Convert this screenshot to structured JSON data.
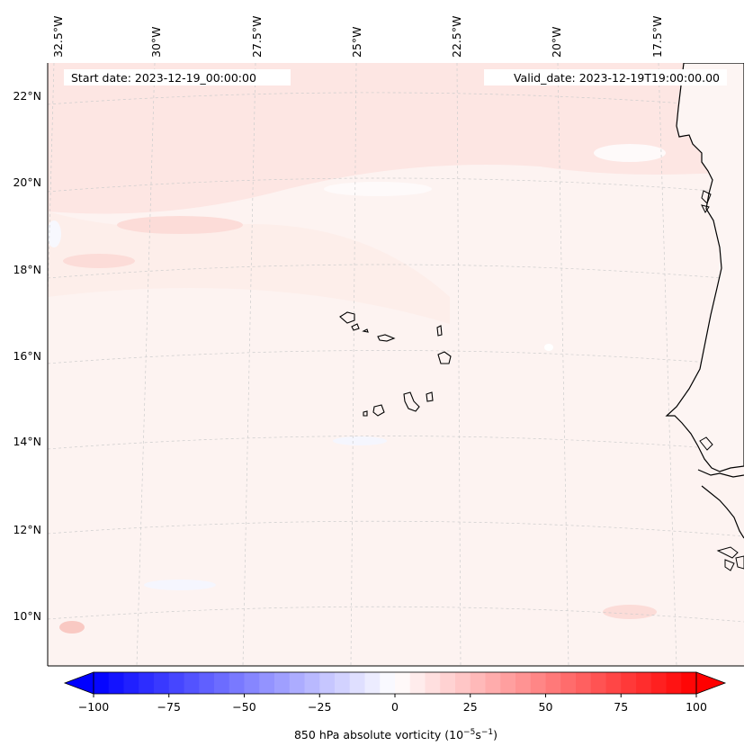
{
  "header": {
    "start_date": "Start date: 2023-12-19_00:00:00",
    "valid_date": "Valid_date: 2023-12-19T19:00:00.00"
  },
  "axes": {
    "lon_labels": [
      "32.5°W",
      "30°W",
      "27.5°W",
      "25°W",
      "22.5°W",
      "20°W",
      "17.5°W"
    ],
    "lat_labels": [
      "22°N",
      "20°N",
      "18°N",
      "16°N",
      "14°N",
      "12°N",
      "10°N"
    ]
  },
  "colorbar": {
    "ticks": [
      "−100",
      "−75",
      "−50",
      "−25",
      "0",
      "25",
      "50",
      "75",
      "100"
    ],
    "label_prefix": "850 hPa absolute vorticity (10",
    "label_exp1": "−5",
    "label_mid": "s",
    "label_exp2": "−1",
    "label_suffix": ")",
    "min": -100,
    "max": 100,
    "levels": 41,
    "colormap": "bwr"
  },
  "colors": {
    "field_base": "#fdf3f1",
    "coastline": "#000000",
    "grid": "#cccccc"
  }
}
